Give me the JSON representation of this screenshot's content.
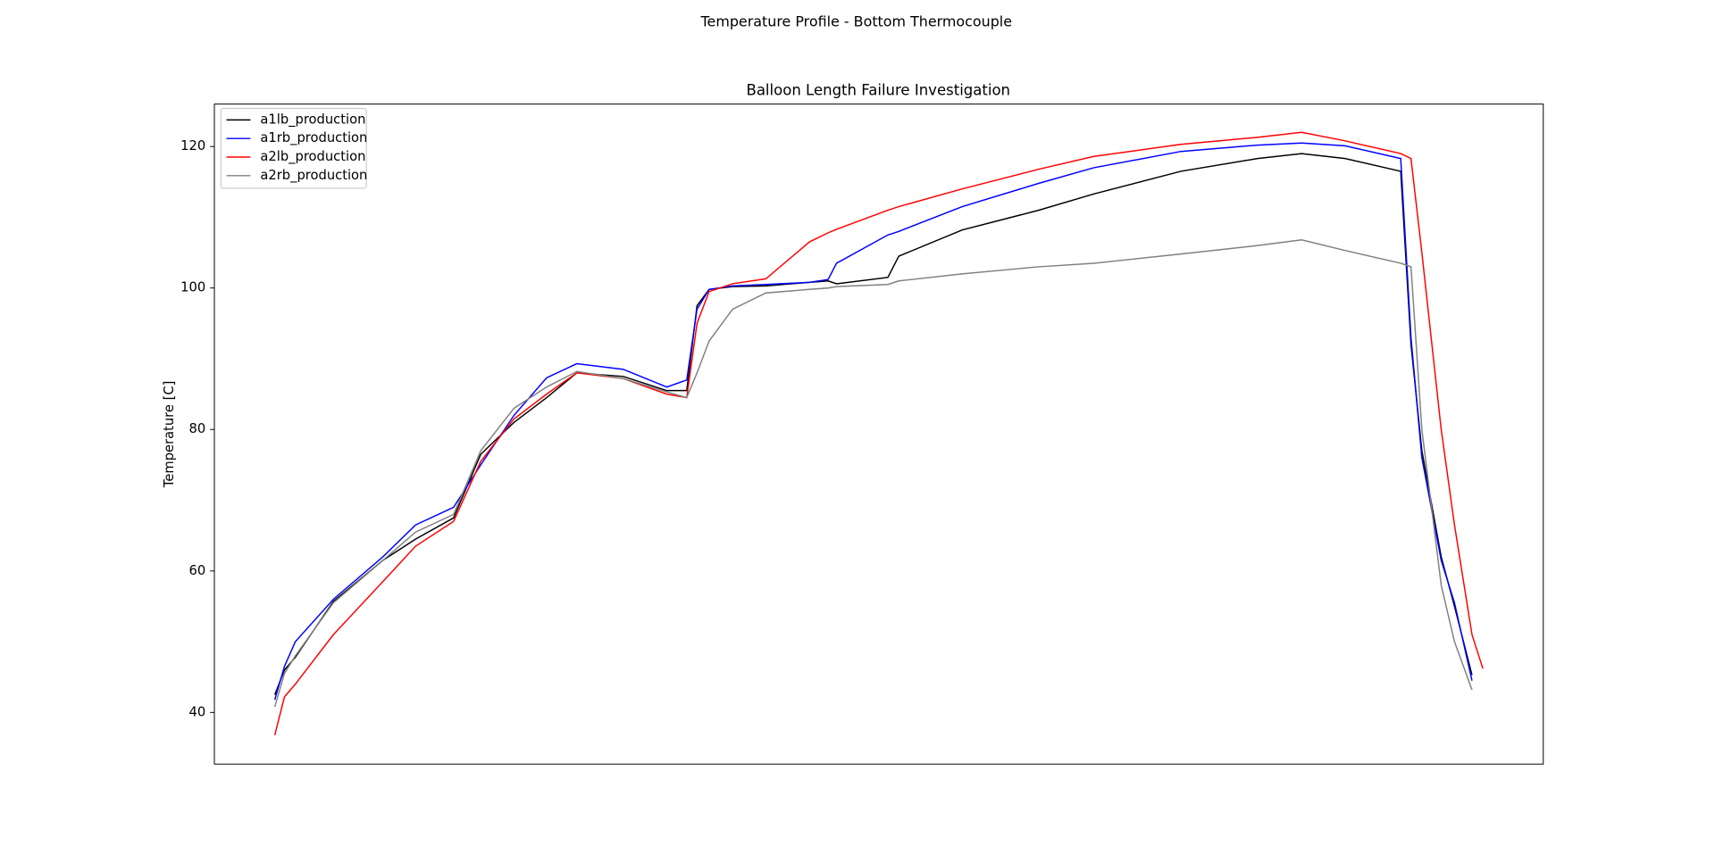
{
  "chart_data": {
    "type": "line",
    "suptitle": "Temperature Profile - Bottom Thermocouple",
    "title": "Balloon Length Failure Investigation",
    "y_label": "Temperature [C]",
    "x": [
      0,
      1.6,
      3.4,
      9.7,
      17.9,
      23.3,
      29.6,
      34.1,
      39.6,
      45.0,
      50.0,
      57.7,
      64.9,
      68.2,
      69.9,
      71.9,
      75.8,
      81.3,
      88.5,
      91.6,
      93.0,
      101.5,
      103.3,
      113.8,
      126.5,
      135.6,
      150.0,
      162.7,
      170.0,
      177.2,
      186.4,
      188.1,
      189.9,
      193.1,
      195.3,
      198.2,
      200
    ],
    "xlim": [
      -10,
      210
    ],
    "ylim": [
      32.7,
      126.0
    ],
    "yticks": [
      40,
      60,
      80,
      100,
      120
    ],
    "legend": "upper left",
    "series": [
      {
        "name": "a1lb_production",
        "color": "#000000",
        "values": [
          42.5,
          46,
          47.8,
          55.7,
          61.5,
          64.5,
          67.5,
          76.5,
          81,
          84.5,
          88,
          87.5,
          85.5,
          85.5,
          97.5,
          99.8,
          100.2,
          100.3,
          100.8,
          101,
          100.6,
          101.5,
          104.5,
          108.2,
          111,
          113.3,
          116.5,
          118.3,
          119,
          118.3,
          116.5,
          92,
          77,
          62,
          55,
          45.3,
          null
        ]
      },
      {
        "name": "a1rb_production",
        "color": "#0000ff",
        "values": [
          41.8,
          46.5,
          50,
          56,
          62,
          66.5,
          69,
          75,
          82,
          87.3,
          89.3,
          88.5,
          86,
          87,
          97,
          99.8,
          100.3,
          100.5,
          100.8,
          101.2,
          103.5,
          107.5,
          108,
          111.5,
          114.8,
          117,
          119.3,
          120.2,
          120.5,
          120.1,
          118.3,
          93,
          76,
          61.5,
          55.5,
          44.5,
          null
        ]
      },
      {
        "name": "a2lb_production",
        "color": "#ff0000",
        "values": [
          36.8,
          42.2,
          44,
          51,
          58.5,
          63.5,
          67,
          75.5,
          81.5,
          85,
          88,
          87.2,
          85,
          84.5,
          95,
          99.5,
          100.6,
          101.3,
          106.5,
          107.8,
          108.3,
          111,
          111.5,
          114,
          116.8,
          118.6,
          120.3,
          121.3,
          122,
          120.8,
          119,
          118.3,
          105,
          80,
          66.5,
          51,
          46.2
        ]
      },
      {
        "name": "a2rb_production",
        "color": "#808080",
        "values": [
          40.8,
          45.5,
          48,
          55.5,
          61.5,
          65.5,
          68,
          77,
          83,
          86,
          88.2,
          87.2,
          85.3,
          84.5,
          88,
          92.5,
          97,
          99.3,
          99.8,
          100,
          100.2,
          100.5,
          101,
          102,
          103,
          103.5,
          104.8,
          106,
          106.8,
          105.3,
          103.5,
          103,
          80,
          58,
          50,
          43.2,
          null
        ]
      }
    ]
  }
}
